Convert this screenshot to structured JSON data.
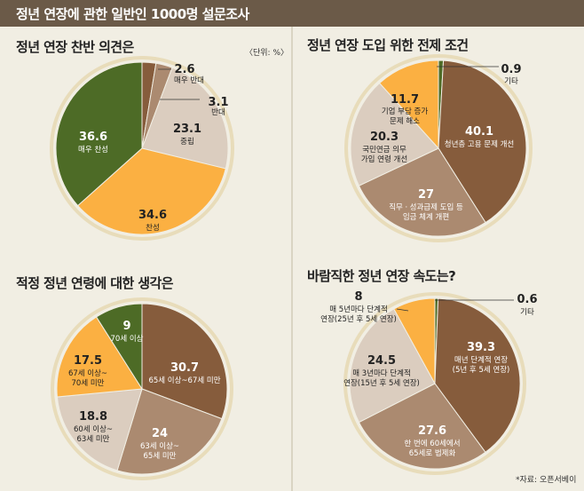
{
  "header": {
    "title": "정년 연장에 관한 일반인 1000명 설문조사"
  },
  "unit_label": "〈단위: %〉",
  "source_label": "*자료: 오픈서베이",
  "colors": {
    "brown": "#865c3c",
    "light_brown": "#ab8a70",
    "beige": "#dbcdbf",
    "orange": "#fbb042",
    "green": "#4d6b26",
    "ring": "#e8dcba"
  },
  "chart_data": [
    {
      "type": "pie",
      "title": "정년 연장 찬반 의견은",
      "series": [
        {
          "name": "매우 반대",
          "value": 2.6,
          "value_label": "2.6",
          "color": "#865c3c"
        },
        {
          "name": "반대",
          "value": 3.1,
          "value_label": "3.1",
          "color": "#ab8a70"
        },
        {
          "name": "중립",
          "value": 23.1,
          "value_label": "23.1",
          "color": "#dbcdbf"
        },
        {
          "name": "찬성",
          "value": 34.6,
          "value_label": "34.6",
          "color": "#fbb042"
        },
        {
          "name": "매우 찬성",
          "value": 36.6,
          "value_label": "36.6",
          "color": "#4d6b26"
        }
      ]
    },
    {
      "type": "pie",
      "title": "정년 연장 도입 위한 전제 조건",
      "series": [
        {
          "name": "기타",
          "value": 0.9,
          "value_label": "0.9",
          "color": "#4d6b26"
        },
        {
          "name": "청년층 고용 문제 개선",
          "value": 40.1,
          "value_label": "40.1",
          "color": "#865c3c"
        },
        {
          "name": "직무ㆍ성과급제 도입 등|임금 체계 개편",
          "value": 27,
          "value_label": "27",
          "color": "#ab8a70"
        },
        {
          "name": "국민연금 의무|가입 연령 개선",
          "value": 20.3,
          "value_label": "20.3",
          "color": "#dbcdbf"
        },
        {
          "name": "기업 부담 증가|문제 해소",
          "value": 11.7,
          "value_label": "11.7",
          "color": "#fbb042"
        }
      ]
    },
    {
      "type": "pie",
      "title": "적정 정년 연령에 대한 생각은",
      "series": [
        {
          "name": "65세 이상~67세 미만",
          "value": 30.7,
          "value_label": "30.7",
          "color": "#865c3c"
        },
        {
          "name": "63세 이상~|65세 미만",
          "value": 24,
          "value_label": "24",
          "color": "#ab8a70"
        },
        {
          "name": "60세 이상~|63세 미만",
          "value": 18.8,
          "value_label": "18.8",
          "color": "#dbcdbf"
        },
        {
          "name": "67세 이상~|70세 미만",
          "value": 17.5,
          "value_label": "17.5",
          "color": "#fbb042"
        },
        {
          "name": "70세 이상",
          "value": 9,
          "value_label": "9",
          "color": "#4d6b26"
        }
      ]
    },
    {
      "type": "pie",
      "title": "바람직한 정년 연장 속도는?",
      "series": [
        {
          "name": "기타",
          "value": 0.6,
          "value_label": "0.6",
          "color": "#4d6b26"
        },
        {
          "name": "매년 단계적 연장|(5년 후 5세 연장)",
          "value": 39.3,
          "value_label": "39.3",
          "color": "#865c3c"
        },
        {
          "name": "한 번에 60세에서|65세로 법제화",
          "value": 27.6,
          "value_label": "27.6",
          "color": "#ab8a70"
        },
        {
          "name": "매 3년마다 단계적|연장(15년 후 5세 연장)",
          "value": 24.5,
          "value_label": "24.5",
          "color": "#dbcdbf"
        },
        {
          "name": "매 5년마다 단계적|연장(25년 후 5세 연장)",
          "value": 8,
          "value_label": "8",
          "color": "#fbb042"
        }
      ]
    }
  ]
}
